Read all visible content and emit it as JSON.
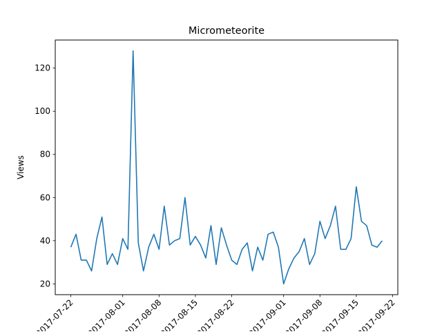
{
  "chart_data": {
    "type": "line",
    "title": "Micrometeorite",
    "xlabel": "",
    "ylabel": "Views",
    "ylim": [
      15,
      133
    ],
    "xlim": [
      "2017-07-19",
      "2017-09-23"
    ],
    "grid": false,
    "legend": "none",
    "line_color": "#1f77b4",
    "x_ticks": [
      {
        "date": "2017-07-22",
        "label": "2017-07-22"
      },
      {
        "date": "2017-08-01",
        "label": "2017-08-01"
      },
      {
        "date": "2017-08-08",
        "label": "2017-08-08"
      },
      {
        "date": "2017-08-15",
        "label": "2017-08-15"
      },
      {
        "date": "2017-08-22",
        "label": "2017-08-22"
      },
      {
        "date": "2017-09-01",
        "label": "2017-09-01"
      },
      {
        "date": "2017-09-08",
        "label": "2017-09-08"
      },
      {
        "date": "2017-09-15",
        "label": "2017-09-15"
      },
      {
        "date": "2017-09-22",
        "label": "2017-09-22"
      }
    ],
    "y_ticks": [
      20,
      40,
      60,
      80,
      100,
      120
    ],
    "series": [
      {
        "x": [
          "2017-07-22",
          "2017-07-23",
          "2017-07-24",
          "2017-07-25",
          "2017-07-26",
          "2017-07-27",
          "2017-07-28",
          "2017-07-29",
          "2017-07-30",
          "2017-07-31",
          "2017-08-01",
          "2017-08-02",
          "2017-08-03",
          "2017-08-04",
          "2017-08-05",
          "2017-08-06",
          "2017-08-07",
          "2017-08-08",
          "2017-08-09",
          "2017-08-10",
          "2017-08-11",
          "2017-08-12",
          "2017-08-13",
          "2017-08-14",
          "2017-08-15",
          "2017-08-16",
          "2017-08-17",
          "2017-08-18",
          "2017-08-19",
          "2017-08-20",
          "2017-08-21",
          "2017-08-22",
          "2017-08-23",
          "2017-08-24",
          "2017-08-25",
          "2017-08-26",
          "2017-08-27",
          "2017-08-28",
          "2017-08-29",
          "2017-08-30",
          "2017-08-31",
          "2017-09-01",
          "2017-09-02",
          "2017-09-03",
          "2017-09-04",
          "2017-09-05",
          "2017-09-06",
          "2017-09-07",
          "2017-09-08",
          "2017-09-09",
          "2017-09-10",
          "2017-09-11",
          "2017-09-12",
          "2017-09-13",
          "2017-09-14",
          "2017-09-15",
          "2017-09-16",
          "2017-09-17",
          "2017-09-18",
          "2017-09-19",
          "2017-09-20",
          "2017-09-21"
        ],
        "values": [
          37,
          43,
          31,
          31,
          26,
          41,
          51,
          29,
          34,
          29,
          41,
          36,
          128,
          39,
          26,
          37,
          43,
          36,
          56,
          38,
          40,
          41,
          60,
          38,
          42,
          38,
          32,
          47,
          29,
          46,
          38,
          31,
          29,
          36,
          39,
          26,
          37,
          31,
          43,
          44,
          37,
          20,
          27,
          32,
          35,
          41,
          29,
          34,
          49,
          41,
          47,
          56,
          36,
          36,
          41,
          65,
          49,
          47,
          38,
          37,
          40,
          null
        ]
      }
    ]
  }
}
